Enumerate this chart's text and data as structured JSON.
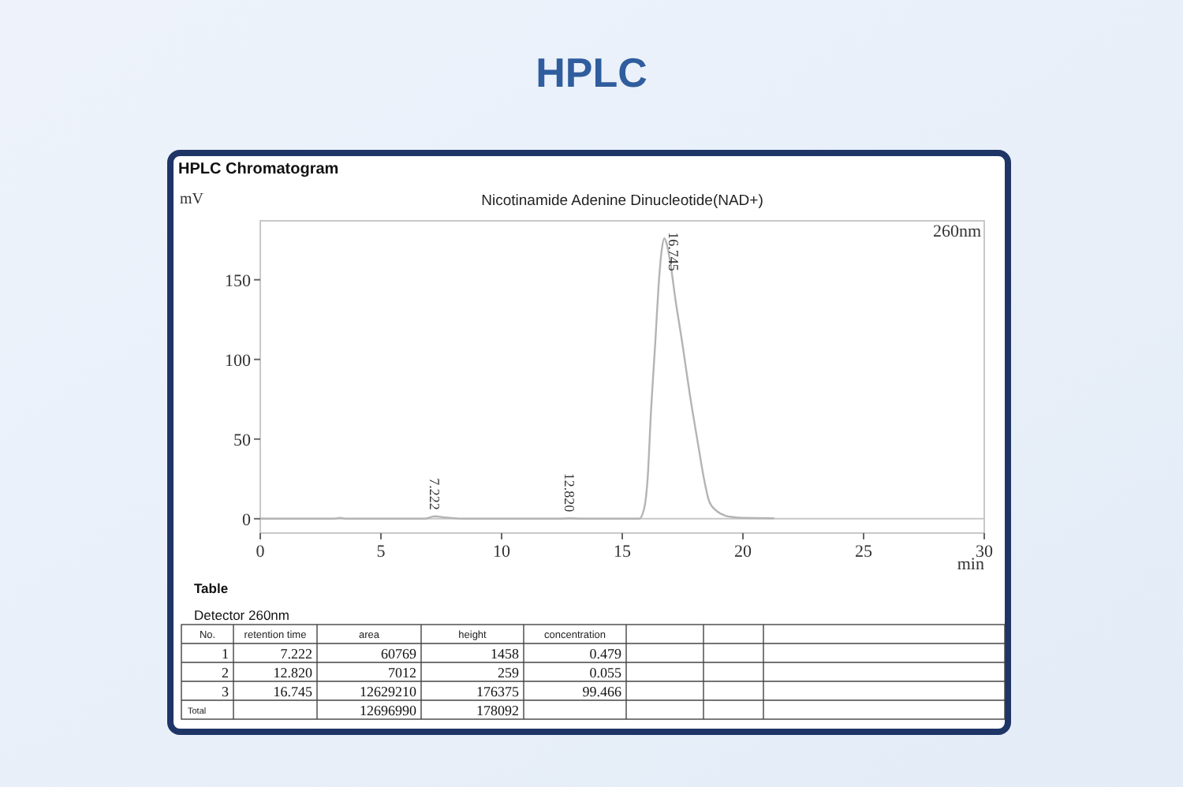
{
  "chart_data": [
    {
      "type": "line",
      "title": "HPLC",
      "subtitle": "Nicotinamide Adenine Dinucleotide(NAD+)",
      "xlabel": "min",
      "ylabel": "mV",
      "annotations": [
        "HPLC Chromatogram",
        "260nm",
        {
          "text": "7.222",
          "x": 7.222,
          "y": 1.5
        },
        {
          "text": "12.820",
          "x": 12.82,
          "y": 0.3
        },
        {
          "text": "16.745",
          "x": 16.745,
          "y": 176
        }
      ],
      "series": [
        {
          "color": "#b4b4b4",
          "x": [
            0,
            3.0,
            3.3,
            3.6,
            6.8,
            7.222,
            7.7,
            8.5,
            12.4,
            12.82,
            13.3,
            15.7,
            15.9,
            16.05,
            16.2,
            16.37,
            16.5,
            16.63,
            16.745,
            16.85,
            17.0,
            17.2,
            17.48,
            17.8,
            18.15,
            18.4,
            18.6,
            18.9,
            19.26,
            19.6,
            20.0,
            21.3
          ],
          "values": [
            0,
            0,
            0.5,
            0,
            0,
            1.5,
            0.8,
            0,
            0,
            0.3,
            0,
            0,
            6,
            25,
            70,
            111,
            145,
            168,
            176,
            172,
            160,
            138,
            111,
            78,
            46,
            24,
            11,
            5,
            2,
            1,
            0.5,
            0.3
          ]
        }
      ],
      "xlim": [
        0,
        30
      ],
      "xticks": [
        0,
        5,
        10,
        15,
        20,
        25,
        30
      ],
      "ylim": [
        -9,
        187
      ],
      "yticks": [
        0,
        50,
        100,
        150
      ],
      "ref_lines": [
        {
          "axis": "y",
          "value": 0,
          "color": "#c8c8c8"
        }
      ],
      "grid": false
    },
    {
      "type": "other",
      "title": "Table",
      "subtitle": "Detector 260nm",
      "categories": [
        "No.",
        "retention time",
        "area",
        "height",
        "concentration"
      ],
      "cell_labels": [
        [
          "1",
          "7.222",
          "60769",
          "1458",
          "0.479"
        ],
        [
          "2",
          "12.820",
          "7012",
          "259",
          "0.055"
        ],
        [
          "3",
          "16.745",
          "12629210",
          "176375",
          "99.466"
        ],
        [
          "Total",
          null,
          "12696990",
          "178092",
          null
        ]
      ]
    }
  ]
}
